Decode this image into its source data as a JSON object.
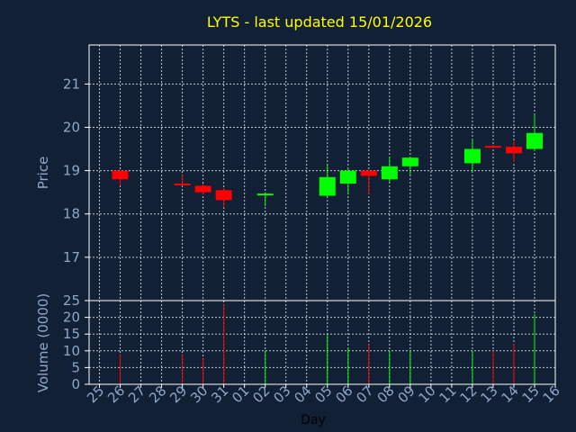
{
  "colors": {
    "background": "#112035",
    "axis": "#ffffff",
    "grid": "#ffffff",
    "title": "#ffff00",
    "label": "#8fa8c8",
    "up": "#00ff00",
    "down": "#ff0000"
  },
  "chart_data": [
    {
      "type": "candlestick",
      "title": "LYTS - last updated 15/01/2026",
      "ylabel": "Price",
      "ylim": [
        16,
        21.9
      ],
      "yticks": [
        "17",
        "18",
        "19",
        "20",
        "21"
      ],
      "grid": true,
      "categories": [
        "25",
        "26",
        "27",
        "28",
        "29",
        "30",
        "31",
        "01",
        "02",
        "03",
        "04",
        "05",
        "06",
        "07",
        "08",
        "09",
        "10",
        "11",
        "12",
        "13",
        "14",
        "15",
        "16"
      ],
      "candles": [
        {
          "x": "26",
          "open": 19.0,
          "high": 19.0,
          "low": 18.65,
          "close": 18.8
        },
        {
          "x": "29",
          "open": 18.7,
          "high": 18.9,
          "low": 18.65,
          "close": 18.67
        },
        {
          "x": "30",
          "open": 18.65,
          "high": 18.7,
          "low": 18.45,
          "close": 18.5
        },
        {
          "x": "31",
          "open": 18.55,
          "high": 18.6,
          "low": 18.15,
          "close": 18.32
        },
        {
          "x": "02",
          "open": 18.45,
          "high": 18.5,
          "low": 18.18,
          "close": 18.47
        },
        {
          "x": "05",
          "open": 18.42,
          "high": 19.12,
          "low": 18.4,
          "close": 18.85
        },
        {
          "x": "06",
          "open": 18.7,
          "high": 19.05,
          "low": 18.45,
          "close": 19.0
        },
        {
          "x": "07",
          "open": 19.0,
          "high": 19.0,
          "low": 18.45,
          "close": 18.88
        },
        {
          "x": "08",
          "open": 18.8,
          "high": 19.32,
          "low": 18.72,
          "close": 19.1
        },
        {
          "x": "09",
          "open": 19.1,
          "high": 19.32,
          "low": 18.9,
          "close": 19.3
        },
        {
          "x": "12",
          "open": 19.17,
          "high": 19.72,
          "low": 18.98,
          "close": 19.5
        },
        {
          "x": "13",
          "open": 19.57,
          "high": 19.6,
          "low": 19.52,
          "close": 19.55
        },
        {
          "x": "14",
          "open": 19.55,
          "high": 19.7,
          "low": 19.2,
          "close": 19.4
        },
        {
          "x": "15",
          "open": 19.5,
          "high": 20.3,
          "low": 19.45,
          "close": 19.87
        }
      ]
    },
    {
      "type": "bar",
      "ylabel": "Volume (0000)",
      "xlabel": "Day",
      "ylim": [
        0,
        25
      ],
      "yticks": [
        "0",
        "5",
        "10",
        "15",
        "20",
        "25"
      ],
      "categories": [
        "25",
        "26",
        "27",
        "28",
        "29",
        "30",
        "31",
        "01",
        "02",
        "03",
        "04",
        "05",
        "06",
        "07",
        "08",
        "09",
        "10",
        "11",
        "12",
        "13",
        "14",
        "15",
        "16"
      ],
      "bars": [
        {
          "x": "26",
          "value": 9,
          "dir": "down"
        },
        {
          "x": "29",
          "value": 9,
          "dir": "down"
        },
        {
          "x": "30",
          "value": 8,
          "dir": "down"
        },
        {
          "x": "31",
          "value": 24,
          "dir": "down"
        },
        {
          "x": "02",
          "value": 10,
          "dir": "up"
        },
        {
          "x": "05",
          "value": 15,
          "dir": "up"
        },
        {
          "x": "06",
          "value": 11,
          "dir": "up"
        },
        {
          "x": "07",
          "value": 12,
          "dir": "down"
        },
        {
          "x": "08",
          "value": 10,
          "dir": "up"
        },
        {
          "x": "09",
          "value": 10,
          "dir": "up"
        },
        {
          "x": "12",
          "value": 10,
          "dir": "up"
        },
        {
          "x": "13",
          "value": 10,
          "dir": "down"
        },
        {
          "x": "14",
          "value": 12,
          "dir": "down"
        },
        {
          "x": "15",
          "value": 21,
          "dir": "up"
        }
      ]
    }
  ]
}
